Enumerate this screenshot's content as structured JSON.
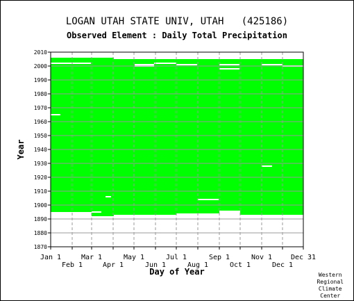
{
  "chart_data": {
    "type": "heatmap",
    "title": "LOGAN UTAH STATE UNIV, UTAH   (425186)",
    "subtitle": "Observed Element : Daily Total Precipitation",
    "xlabel": "Day of Year",
    "ylabel": "Year",
    "ylim": [
      1870,
      2010
    ],
    "y_ticks": [
      1870,
      1880,
      1890,
      1900,
      1910,
      1920,
      1930,
      1940,
      1950,
      1960,
      1970,
      1980,
      1990,
      2000,
      2010
    ],
    "x_ticks_upper": [
      {
        "label": "Jan 1",
        "day": 1
      },
      {
        "label": "Mar 1",
        "day": 60
      },
      {
        "label": "May 1",
        "day": 121
      },
      {
        "label": "Jul 1",
        "day": 182
      },
      {
        "label": "Sep 1",
        "day": 244
      },
      {
        "label": "Nov 1",
        "day": 305
      },
      {
        "label": "Dec 31",
        "day": 365
      }
    ],
    "x_ticks_lower": [
      {
        "label": "Feb 1",
        "day": 32
      },
      {
        "label": "Apr 1",
        "day": 91
      },
      {
        "label": "Jun 1",
        "day": 152
      },
      {
        "label": "Aug 1",
        "day": 213
      },
      {
        "label": "Oct 1",
        "day": 274
      },
      {
        "label": "Dec 1",
        "day": 335
      }
    ],
    "data_color": "#00ff00",
    "coverage": [
      {
        "from_day": 1,
        "to_day": 59,
        "from_year": 1895,
        "to_year": 2006
      },
      {
        "from_day": 60,
        "to_day": 91,
        "from_year": 1892,
        "to_year": 2006
      },
      {
        "from_day": 92,
        "to_day": 181,
        "from_year": 1893,
        "to_year": 2005
      },
      {
        "from_day": 182,
        "to_day": 243,
        "from_year": 1894,
        "to_year": 2005
      },
      {
        "from_day": 244,
        "to_day": 273,
        "from_year": 1896,
        "to_year": 2005
      },
      {
        "from_day": 274,
        "to_day": 365,
        "from_year": 1893,
        "to_year": 2005
      }
    ],
    "gaps": [
      {
        "from_day": 1,
        "to_day": 59,
        "year": 2002
      },
      {
        "from_day": 1,
        "to_day": 15,
        "year": 1965
      },
      {
        "from_day": 122,
        "to_day": 150,
        "year": 2001
      },
      {
        "from_day": 122,
        "to_day": 150,
        "year": 2000
      },
      {
        "from_day": 150,
        "to_day": 182,
        "year": 2002
      },
      {
        "from_day": 182,
        "to_day": 212,
        "year": 2001
      },
      {
        "from_day": 244,
        "to_day": 273,
        "year": 2001
      },
      {
        "from_day": 244,
        "to_day": 273,
        "year": 1998
      },
      {
        "from_day": 305,
        "to_day": 335,
        "year": 2001
      },
      {
        "from_day": 335,
        "to_day": 365,
        "year": 2000
      },
      {
        "from_day": 60,
        "to_day": 74,
        "year": 1895
      },
      {
        "from_day": 213,
        "to_day": 243,
        "year": 1904
      },
      {
        "from_day": 305,
        "to_day": 320,
        "year": 1928
      },
      {
        "from_day": 80,
        "to_day": 88,
        "year": 1906
      }
    ],
    "grid": true,
    "plot_bounds_days": [
      1,
      365
    ]
  },
  "credit": [
    "Western",
    "Regional",
    "Climate",
    "Center"
  ]
}
